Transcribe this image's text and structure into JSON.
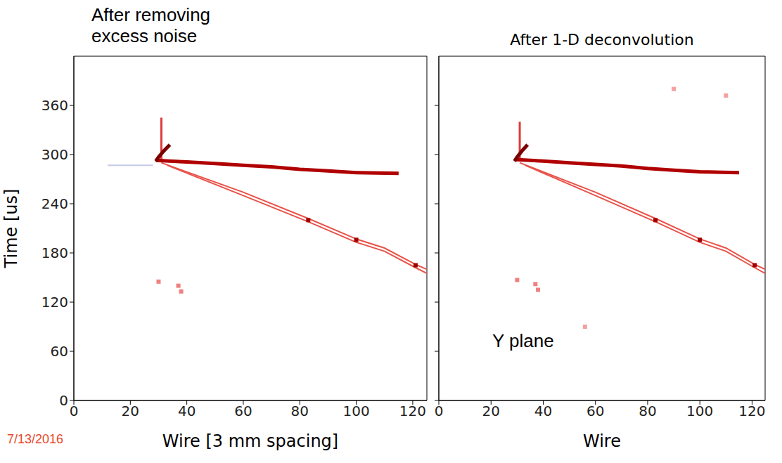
{
  "date": "7/13/2016",
  "chart_data": [
    {
      "type": "line",
      "title": "After removing excess noise",
      "x_label": "Wire [3 mm spacing]",
      "y_label": "Time [us]",
      "xlim": [
        0,
        125
      ],
      "ylim": [
        0,
        420
      ],
      "xticks": [
        0,
        20,
        40,
        60,
        80,
        100,
        120
      ],
      "yticks": [
        0,
        60,
        120,
        180,
        240,
        300,
        360
      ],
      "series": [
        {
          "type": "line",
          "color": "#c5cbe8",
          "line_style": "thin",
          "x": [
            12,
            28
          ],
          "values": [
            287,
            287
          ]
        },
        {
          "type": "line",
          "color": "#e03a3a",
          "line_style": "medium",
          "x": [
            31,
            31
          ],
          "values": [
            292,
            345
          ]
        },
        {
          "type": "line",
          "color": "#e8534a",
          "line_style": "thin",
          "x": [
            31,
            60,
            83,
            100,
            110,
            121,
            125
          ],
          "values": [
            290,
            254,
            222,
            197,
            186,
            166,
            160
          ]
        },
        {
          "type": "line",
          "color": "#e8534a",
          "line_style": "thin",
          "x": [
            33,
            60,
            83,
            100,
            110,
            121,
            125
          ],
          "values": [
            287,
            250,
            218,
            193,
            182,
            162,
            155
          ]
        },
        {
          "type": "line",
          "color": "#b00000",
          "line_style": "bold",
          "x": [
            29,
            40,
            50,
            60,
            70,
            80,
            90,
            100,
            115
          ],
          "values": [
            293,
            291,
            289,
            287,
            285,
            282,
            280,
            278,
            277
          ]
        },
        {
          "type": "line",
          "color": "#7a0000",
          "line_style": "bold",
          "x": [
            29,
            30,
            32,
            34
          ],
          "values": [
            292,
            297,
            305,
            312
          ]
        },
        {
          "type": "scatter",
          "color": "#f08080",
          "x": [
            30,
            37,
            38
          ],
          "values": [
            145,
            140,
            133
          ]
        },
        {
          "type": "scatter",
          "color": "#a00000",
          "x": [
            83,
            100,
            121
          ],
          "values": [
            220,
            196,
            165
          ]
        }
      ]
    },
    {
      "type": "line",
      "title": "After 1-D deconvolution",
      "x_label": "Wire",
      "annotation": "Y plane",
      "tick_labels": "x",
      "xlim": [
        0,
        125
      ],
      "ylim": [
        0,
        420
      ],
      "xticks": [
        0,
        20,
        40,
        60,
        80,
        100,
        120
      ],
      "yticks": [
        0,
        60,
        120,
        180,
        240,
        300,
        360
      ],
      "series": [
        {
          "type": "line",
          "color": "#e03a3a",
          "line_style": "medium",
          "x": [
            31,
            31
          ],
          "values": [
            292,
            340
          ]
        },
        {
          "type": "line",
          "color": "#e8534a",
          "line_style": "thin",
          "x": [
            31,
            60,
            83,
            100,
            110,
            121,
            125
          ],
          "values": [
            290,
            254,
            222,
            197,
            186,
            166,
            160
          ]
        },
        {
          "type": "line",
          "color": "#e8534a",
          "line_style": "thin",
          "x": [
            33,
            60,
            83,
            100,
            110,
            121,
            125
          ],
          "values": [
            287,
            250,
            218,
            193,
            182,
            162,
            155
          ]
        },
        {
          "type": "line",
          "color": "#b00000",
          "line_style": "bold",
          "x": [
            29,
            40,
            50,
            60,
            70,
            80,
            90,
            100,
            115
          ],
          "values": [
            294,
            292,
            290,
            288,
            286,
            283,
            281,
            279,
            278
          ]
        },
        {
          "type": "line",
          "color": "#7a0000",
          "line_style": "bold",
          "x": [
            29,
            30,
            32,
            34
          ],
          "values": [
            292,
            297,
            305,
            312
          ]
        },
        {
          "type": "scatter",
          "color": "#f08080",
          "x": [
            30,
            37,
            38
          ],
          "values": [
            147,
            142,
            135
          ]
        },
        {
          "type": "scatter",
          "color": "#f4a0a0",
          "x": [
            56,
            90,
            110
          ],
          "values": [
            90,
            380,
            372
          ]
        },
        {
          "type": "scatter",
          "color": "#a00000",
          "x": [
            83,
            100,
            121
          ],
          "values": [
            220,
            196,
            165
          ]
        }
      ]
    }
  ]
}
